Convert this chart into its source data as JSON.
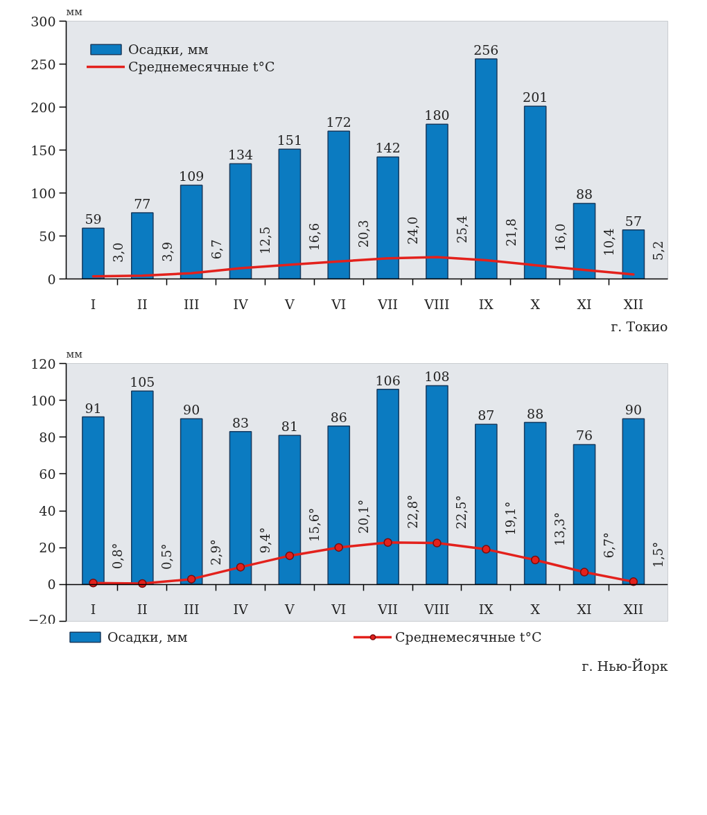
{
  "chart_data": [
    {
      "type": "bar",
      "categories": [
        "I",
        "II",
        "III",
        "IV",
        "V",
        "VI",
        "VII",
        "VIII",
        "IX",
        "X",
        "XI",
        "XII"
      ],
      "ylabel": "мм",
      "ylim": [
        0,
        300
      ],
      "yticks": [
        0,
        50,
        100,
        150,
        200,
        250,
        300
      ],
      "legend": "top left",
      "annotations": [
        "г. Токио"
      ],
      "series": [
        {
          "name": "Осадки, мм",
          "color": "#0b7bc1",
          "values": [
            59,
            77,
            109,
            134,
            151,
            172,
            142,
            180,
            256,
            201,
            88,
            57
          ],
          "value_labels": [
            "59",
            "77",
            "109",
            "134",
            "151",
            "172",
            "142",
            "180",
            "256",
            "201",
            "88",
            "57"
          ]
        },
        {
          "name": "Среднемесячные t°C",
          "type": "line",
          "color": "#e3211c",
          "values": [
            3.0,
            3.9,
            6.7,
            12.5,
            16.6,
            20.3,
            24.0,
            25.4,
            21.8,
            16.0,
            10.4,
            5.2
          ],
          "value_labels": [
            "3,0",
            "3,9",
            "6,7",
            "12,5",
            "16,6",
            "20,3",
            "24,0",
            "25,4",
            "21,8",
            "16,0",
            "10,4",
            "5,2"
          ]
        }
      ]
    },
    {
      "type": "bar",
      "categories": [
        "I",
        "II",
        "III",
        "IV",
        "V",
        "VI",
        "VII",
        "VIII",
        "IX",
        "X",
        "XI",
        "XII"
      ],
      "ylabel": "мм",
      "ylim": [
        -20,
        120
      ],
      "yticks": [
        {
          "value": -20,
          "label": "−20"
        },
        0,
        20,
        40,
        60,
        80,
        100,
        120
      ],
      "legend": "bottom",
      "annotations": [
        "г. Нью-Йорк"
      ],
      "series": [
        {
          "name": "Осадки, мм",
          "color": "#0b7bc1",
          "values": [
            91,
            105,
            90,
            83,
            81,
            86,
            106,
            108,
            87,
            88,
            76,
            90
          ],
          "value_labels": [
            "91",
            "105",
            "90",
            "83",
            "81",
            "86",
            "106",
            "108",
            "87",
            "88",
            "76",
            "90"
          ]
        },
        {
          "name": "Среднемесячные t°C",
          "type": "line",
          "color": "#e3211c",
          "marker": "circle",
          "values": [
            0.8,
            0.5,
            2.9,
            9.4,
            15.6,
            20.1,
            22.8,
            22.5,
            19.1,
            13.3,
            6.7,
            1.5
          ],
          "value_labels": [
            "0,8°",
            "0,5°",
            "2,9°",
            "9,4°",
            "15,6°",
            "20,1°",
            "22,8°",
            "22,5°",
            "19,1°",
            "13,3°",
            "6,7°",
            "1,5°"
          ]
        }
      ]
    }
  ]
}
